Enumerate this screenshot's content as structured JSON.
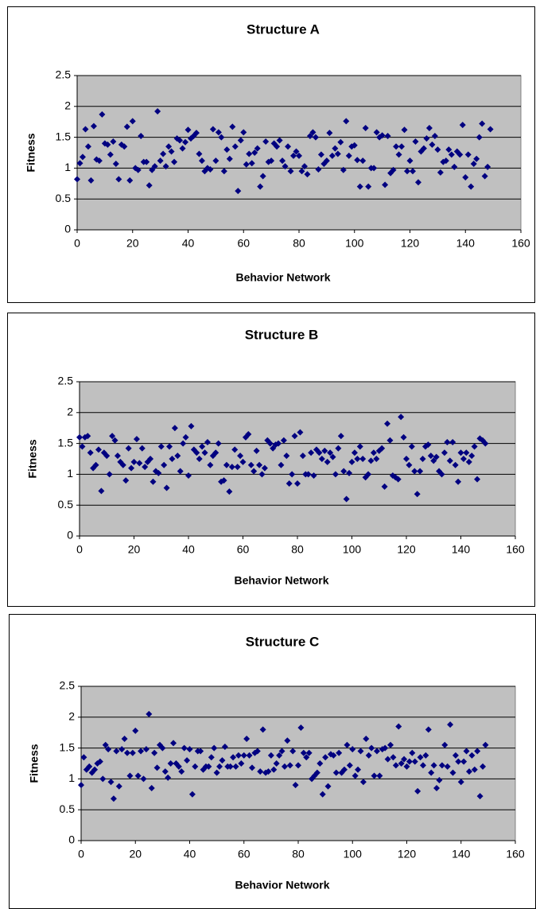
{
  "chart_data": [
    {
      "type": "scatter",
      "title": "Structure A",
      "x_label": "Behavior Network",
      "y_label": "Fitness",
      "color": "#000080",
      "plot_background": "#c0c0c0",
      "grid": true,
      "xlim": [
        0,
        160
      ],
      "xticks": [
        0,
        20,
        40,
        60,
        80,
        100,
        120,
        140,
        160
      ],
      "ylim": [
        0,
        2.5
      ],
      "yticks": [
        0,
        0.5,
        1,
        1.5,
        2,
        2.5
      ],
      "x": [
        0,
        1,
        2,
        3,
        4,
        5,
        6,
        7,
        8,
        9,
        10,
        11,
        12,
        13,
        14,
        15,
        16,
        17,
        18,
        19,
        20,
        21,
        22,
        23,
        24,
        25,
        26,
        27,
        28,
        29,
        30,
        31,
        32,
        33,
        34,
        35,
        36,
        37,
        38,
        39,
        40,
        41,
        42,
        43,
        44,
        45,
        46,
        47,
        48,
        49,
        50,
        51,
        52,
        53,
        54,
        55,
        56,
        57,
        58,
        59,
        60,
        61,
        62,
        63,
        64,
        65,
        66,
        67,
        68,
        69,
        70,
        71,
        72,
        73,
        74,
        75,
        76,
        77,
        78,
        79,
        80,
        81,
        82,
        83,
        84,
        85,
        86,
        87,
        88,
        89,
        90,
        91,
        92,
        93,
        94,
        95,
        96,
        97,
        98,
        99,
        100,
        101,
        102,
        103,
        104,
        105,
        106,
        107,
        108,
        109,
        110,
        111,
        112,
        113,
        114,
        115,
        116,
        117,
        118,
        119,
        120,
        121,
        122,
        123,
        124,
        125,
        126,
        127,
        128,
        129,
        130,
        131,
        132,
        133,
        134,
        135,
        136,
        137,
        138,
        139,
        140,
        141,
        142,
        143,
        144,
        145,
        146,
        147,
        148,
        149
      ],
      "values": [
        0.82,
        1.08,
        1.18,
        1.63,
        1.35,
        0.8,
        1.68,
        1.14,
        1.12,
        1.87,
        1.4,
        1.38,
        1.22,
        1.43,
        1.07,
        0.82,
        1.38,
        1.35,
        1.67,
        0.8,
        1.76,
        1.0,
        0.97,
        1.52,
        1.1,
        1.1,
        0.72,
        0.97,
        1.03,
        1.92,
        1.12,
        1.23,
        1.03,
        1.35,
        1.27,
        1.1,
        1.48,
        1.45,
        1.32,
        1.42,
        1.62,
        1.48,
        1.52,
        1.57,
        1.23,
        1.12,
        0.95,
        1.0,
        0.98,
        1.63,
        1.12,
        1.58,
        1.5,
        0.95,
        1.3,
        1.15,
        1.67,
        1.35,
        0.63,
        1.45,
        1.58,
        1.06,
        1.23,
        1.08,
        1.25,
        1.32,
        0.7,
        0.87,
        1.43,
        1.1,
        1.12,
        1.4,
        1.35,
        1.45,
        1.12,
        1.03,
        1.35,
        0.95,
        1.2,
        1.27,
        1.2,
        0.95,
        1.03,
        0.9,
        1.52,
        1.58,
        1.5,
        0.98,
        1.22,
        1.07,
        1.12,
        1.57,
        1.2,
        1.32,
        1.23,
        1.42,
        0.97,
        1.76,
        1.2,
        1.35,
        1.37,
        1.13,
        0.7,
        1.12,
        1.65,
        0.7,
        1.0,
        1.0,
        1.58,
        1.5,
        1.53,
        0.73,
        1.52,
        0.92,
        0.97,
        1.35,
        1.22,
        1.35,
        1.62,
        0.95,
        1.12,
        0.95,
        1.43,
        0.77,
        1.27,
        1.32,
        1.48,
        1.65,
        1.38,
        1.52,
        1.3,
        0.93,
        1.1,
        1.12,
        1.3,
        1.22,
        1.02,
        1.27,
        1.22,
        1.7,
        0.85,
        1.22,
        0.7,
        1.07,
        1.15,
        1.5,
        1.72,
        0.87,
        1.02,
        1.63
      ]
    },
    {
      "type": "scatter",
      "title": "Structure B",
      "x_label": "Behavior Network",
      "y_label": "Fitness",
      "color": "#000080",
      "plot_background": "#c0c0c0",
      "grid": true,
      "xlim": [
        0,
        160
      ],
      "xticks": [
        0,
        20,
        40,
        60,
        80,
        100,
        120,
        140,
        160
      ],
      "ylim": [
        0,
        2.5
      ],
      "yticks": [
        0,
        0.5,
        1,
        1.5,
        2,
        2.5
      ],
      "x": [
        0,
        1,
        2,
        3,
        4,
        5,
        6,
        7,
        8,
        9,
        10,
        11,
        12,
        13,
        14,
        15,
        16,
        17,
        18,
        19,
        20,
        21,
        22,
        23,
        24,
        25,
        26,
        27,
        28,
        29,
        30,
        31,
        32,
        33,
        34,
        35,
        36,
        37,
        38,
        39,
        40,
        41,
        42,
        43,
        44,
        45,
        46,
        47,
        48,
        49,
        50,
        51,
        52,
        53,
        54,
        55,
        56,
        57,
        58,
        59,
        60,
        61,
        62,
        63,
        64,
        65,
        66,
        67,
        68,
        69,
        70,
        71,
        72,
        73,
        74,
        75,
        76,
        77,
        78,
        79,
        80,
        81,
        82,
        83,
        84,
        85,
        86,
        87,
        88,
        89,
        90,
        91,
        92,
        93,
        94,
        95,
        96,
        97,
        98,
        99,
        100,
        101,
        102,
        103,
        104,
        105,
        106,
        107,
        108,
        109,
        110,
        111,
        112,
        113,
        114,
        115,
        116,
        117,
        118,
        119,
        120,
        121,
        122,
        123,
        124,
        125,
        126,
        127,
        128,
        129,
        130,
        131,
        132,
        133,
        134,
        135,
        136,
        137,
        138,
        139,
        140,
        141,
        142,
        143,
        144,
        145,
        146,
        147,
        148,
        149
      ],
      "values": [
        1.6,
        1.45,
        1.6,
        1.62,
        1.35,
        1.1,
        1.15,
        1.4,
        0.73,
        1.35,
        1.3,
        1.0,
        1.62,
        1.55,
        1.3,
        1.2,
        1.15,
        0.9,
        1.42,
        1.1,
        1.2,
        1.57,
        1.18,
        1.42,
        1.12,
        1.2,
        1.25,
        0.88,
        1.05,
        1.02,
        1.45,
        1.15,
        0.78,
        1.45,
        1.25,
        1.75,
        1.3,
        1.05,
        1.5,
        1.6,
        0.98,
        1.78,
        1.4,
        1.35,
        1.25,
        1.45,
        1.35,
        1.52,
        1.15,
        1.3,
        1.35,
        1.5,
        0.88,
        0.9,
        1.15,
        0.72,
        1.12,
        1.4,
        1.12,
        1.3,
        1.2,
        1.6,
        1.65,
        1.15,
        1.05,
        1.38,
        1.15,
        1.0,
        1.1,
        1.55,
        1.5,
        1.42,
        1.48,
        1.5,
        1.15,
        1.55,
        1.3,
        0.85,
        1.0,
        1.62,
        0.85,
        1.68,
        1.3,
        1.0,
        1.0,
        1.35,
        0.98,
        1.4,
        1.35,
        1.25,
        1.38,
        1.2,
        1.35,
        1.28,
        1.0,
        1.42,
        1.62,
        1.05,
        0.6,
        1.02,
        1.2,
        1.35,
        1.25,
        1.45,
        1.25,
        0.95,
        1.0,
        1.22,
        1.35,
        1.25,
        1.38,
        1.42,
        0.8,
        1.82,
        1.55,
        0.98,
        0.95,
        0.92,
        1.93,
        1.6,
        1.25,
        1.15,
        1.45,
        1.05,
        0.68,
        1.05,
        1.25,
        1.45,
        1.48,
        1.3,
        1.22,
        1.28,
        1.05,
        1.0,
        1.35,
        1.52,
        1.22,
        1.52,
        1.15,
        0.88,
        1.35,
        1.25,
        1.35,
        1.2,
        1.3,
        1.45,
        0.92,
        1.58,
        1.55,
        1.5
      ]
    },
    {
      "type": "scatter",
      "title": "Structure C",
      "x_label": "Behavior Network",
      "y_label": "Fitness",
      "color": "#000080",
      "plot_background": "#c0c0c0",
      "grid": true,
      "xlim": [
        0,
        160
      ],
      "xticks": [
        0,
        20,
        40,
        60,
        80,
        100,
        120,
        140,
        160
      ],
      "ylim": [
        0,
        2.5
      ],
      "yticks": [
        0,
        0.5,
        1,
        1.5,
        2,
        2.5
      ],
      "x": [
        0,
        1,
        2,
        3,
        4,
        5,
        6,
        7,
        8,
        9,
        10,
        11,
        12,
        13,
        14,
        15,
        16,
        17,
        18,
        19,
        20,
        21,
        22,
        23,
        24,
        25,
        26,
        27,
        28,
        29,
        30,
        31,
        32,
        33,
        34,
        35,
        36,
        37,
        38,
        39,
        40,
        41,
        42,
        43,
        44,
        45,
        46,
        47,
        48,
        49,
        50,
        51,
        52,
        53,
        54,
        55,
        56,
        57,
        58,
        59,
        60,
        61,
        62,
        63,
        64,
        65,
        66,
        67,
        68,
        69,
        70,
        71,
        72,
        73,
        74,
        75,
        76,
        77,
        78,
        79,
        80,
        81,
        82,
        83,
        84,
        85,
        86,
        87,
        88,
        89,
        90,
        91,
        92,
        93,
        94,
        95,
        96,
        97,
        98,
        99,
        100,
        101,
        102,
        103,
        104,
        105,
        106,
        107,
        108,
        109,
        110,
        111,
        112,
        113,
        114,
        115,
        116,
        117,
        118,
        119,
        120,
        121,
        122,
        123,
        124,
        125,
        126,
        127,
        128,
        129,
        130,
        131,
        132,
        133,
        134,
        135,
        136,
        137,
        138,
        139,
        140,
        141,
        142,
        143,
        144,
        145,
        146,
        147,
        148,
        149
      ],
      "values": [
        0.9,
        1.35,
        1.15,
        1.2,
        1.1,
        1.15,
        1.25,
        1.28,
        1.0,
        1.55,
        1.48,
        0.95,
        0.68,
        1.45,
        0.88,
        1.48,
        1.65,
        1.42,
        1.05,
        1.42,
        1.78,
        1.05,
        1.45,
        1.0,
        1.48,
        2.05,
        0.85,
        1.42,
        1.18,
        1.55,
        1.5,
        1.12,
        1.02,
        1.25,
        1.58,
        1.25,
        1.2,
        1.12,
        1.5,
        1.3,
        1.48,
        0.75,
        1.2,
        1.45,
        1.45,
        1.15,
        1.2,
        1.2,
        1.35,
        1.5,
        1.1,
        1.2,
        1.3,
        1.52,
        1.2,
        1.2,
        1.35,
        1.2,
        1.38,
        1.25,
        1.38,
        1.65,
        1.38,
        1.18,
        1.42,
        1.45,
        1.12,
        1.8,
        1.1,
        1.12,
        1.38,
        1.15,
        1.25,
        1.38,
        1.45,
        1.2,
        1.62,
        1.22,
        1.45,
        0.9,
        1.22,
        1.83,
        1.42,
        1.35,
        1.42,
        1.0,
        1.05,
        1.1,
        1.25,
        0.75,
        1.35,
        0.88,
        1.4,
        1.38,
        1.1,
        1.42,
        1.1,
        1.15,
        1.55,
        1.22,
        1.48,
        1.05,
        1.15,
        1.45,
        0.95,
        1.65,
        1.38,
        1.5,
        1.05,
        1.45,
        1.05,
        1.48,
        1.5,
        1.32,
        1.55,
        1.35,
        1.22,
        1.85,
        1.25,
        1.32,
        1.2,
        1.28,
        1.42,
        1.28,
        0.8,
        1.35,
        1.22,
        1.38,
        1.8,
        1.1,
        1.22,
        0.85,
        0.98,
        1.22,
        1.55,
        1.2,
        1.88,
        1.1,
        1.38,
        1.28,
        0.95,
        1.28,
        1.45,
        1.12,
        1.38,
        1.15,
        1.45,
        0.72,
        1.2,
        1.55
      ]
    }
  ]
}
